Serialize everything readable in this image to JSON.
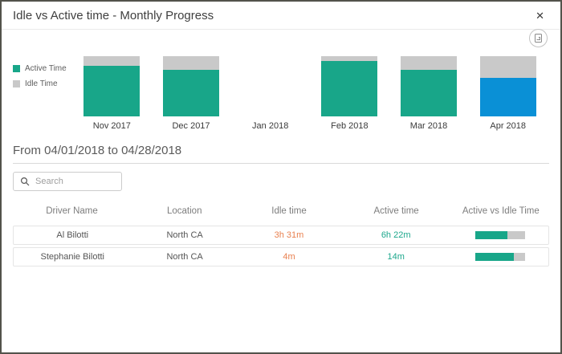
{
  "header": {
    "title": "Idle vs Active time - Monthly Progress"
  },
  "icons": {
    "close": "✕"
  },
  "chart_data": {
    "type": "stacked-bar-100",
    "categories": [
      "Nov 2017",
      "Dec 2017",
      "Jan 2018",
      "Feb 2018",
      "Mar 2018",
      "Apr 2018"
    ],
    "series": [
      {
        "name": "Active Time",
        "values": [
          84,
          78,
          null,
          92,
          77,
          64
        ]
      },
      {
        "name": "Idle Time",
        "values": [
          16,
          22,
          null,
          8,
          23,
          36
        ]
      }
    ],
    "unit": "percent",
    "ylim": [
      0,
      100
    ],
    "legend_position": "left",
    "selected_category": "Apr 2018",
    "colors": {
      "active": "#18a689",
      "idle": "#c9c9c9",
      "selected_active": "#0a90d6"
    }
  },
  "period": {
    "label": "From 04/01/2018 to 04/28/2018"
  },
  "search": {
    "placeholder": "Search",
    "value": ""
  },
  "table": {
    "columns": [
      "Driver Name",
      "Location",
      "Idle time",
      "Active time",
      "Active vs Idle Time"
    ],
    "rows": [
      {
        "driver": "Al Bilotti",
        "location": "North CA",
        "idle_time": "3h 31m",
        "active_time": "6h 22m",
        "active_pct": 64
      },
      {
        "driver": "Stephanie Bilotti",
        "location": "North CA",
        "idle_time": "4m",
        "active_time": "14m",
        "active_pct": 78
      }
    ]
  },
  "colors": {
    "idle_text": "#e8804f",
    "active_text": "#1da78c"
  }
}
